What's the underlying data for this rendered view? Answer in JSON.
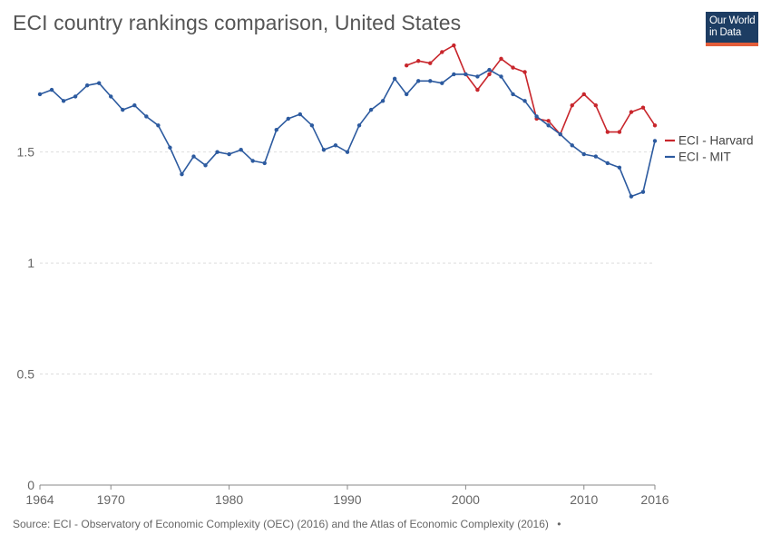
{
  "title": "ECI country rankings comparison, United States",
  "logo": {
    "line1": "Our World",
    "line2": "in Data"
  },
  "source": "Source: ECI - Observatory of Economic Complexity (OEC) (2016) and the Atlas of Economic Complexity (2016)",
  "source_dot": "•",
  "colors": {
    "harvard": "#c8262c",
    "mit": "#2c5a9f",
    "grid": "#dddddd",
    "axis": "#666666"
  },
  "chart_data": {
    "type": "line",
    "title": "ECI country rankings comparison, United States",
    "xlim": [
      1964,
      2016
    ],
    "ylim": [
      0,
      1.96
    ],
    "x_ticks": [
      "1964",
      "1970",
      "1980",
      "1990",
      "2000",
      "2010",
      "2016"
    ],
    "y_ticks": [
      "0",
      "0.5",
      "1",
      "1.5"
    ],
    "grid": "horizontal dashed",
    "legend_placement": "right",
    "series": [
      {
        "name": "ECI - Harvard",
        "color": "#c8262c",
        "x": [
          1995,
          1996,
          1997,
          1998,
          1999,
          2000,
          2001,
          2002,
          2003,
          2004,
          2005,
          2006,
          2007,
          2008,
          2009,
          2010,
          2011,
          2012,
          2013,
          2014,
          2015,
          2016
        ],
        "y": [
          1.89,
          1.91,
          1.9,
          1.95,
          1.98,
          1.85,
          1.78,
          1.85,
          1.92,
          1.88,
          1.86,
          1.65,
          1.64,
          1.58,
          1.71,
          1.76,
          1.71,
          1.59,
          1.59,
          1.68,
          1.7,
          1.62
        ]
      },
      {
        "name": "ECI - MIT",
        "color": "#2c5a9f",
        "x": [
          1964,
          1965,
          1966,
          1967,
          1968,
          1969,
          1970,
          1971,
          1972,
          1973,
          1974,
          1975,
          1976,
          1977,
          1978,
          1979,
          1980,
          1981,
          1982,
          1983,
          1984,
          1985,
          1986,
          1987,
          1988,
          1989,
          1990,
          1991,
          1992,
          1993,
          1994,
          1995,
          1996,
          1997,
          1998,
          1999,
          2000,
          2001,
          2002,
          2003,
          2004,
          2005,
          2006,
          2007,
          2008,
          2009,
          2010,
          2011,
          2012,
          2013,
          2014,
          2015,
          2016
        ],
        "y": [
          1.76,
          1.78,
          1.73,
          1.75,
          1.8,
          1.81,
          1.75,
          1.69,
          1.71,
          1.66,
          1.62,
          1.52,
          1.4,
          1.48,
          1.44,
          1.5,
          1.49,
          1.51,
          1.46,
          1.45,
          1.6,
          1.65,
          1.67,
          1.62,
          1.51,
          1.53,
          1.5,
          1.62,
          1.69,
          1.73,
          1.83,
          1.76,
          1.82,
          1.82,
          1.81,
          1.85,
          1.85,
          1.84,
          1.87,
          1.84,
          1.76,
          1.73,
          1.66,
          1.62,
          1.58,
          1.53,
          1.49,
          1.48,
          1.45,
          1.43,
          1.3,
          1.32,
          1.55
        ]
      }
    ]
  }
}
